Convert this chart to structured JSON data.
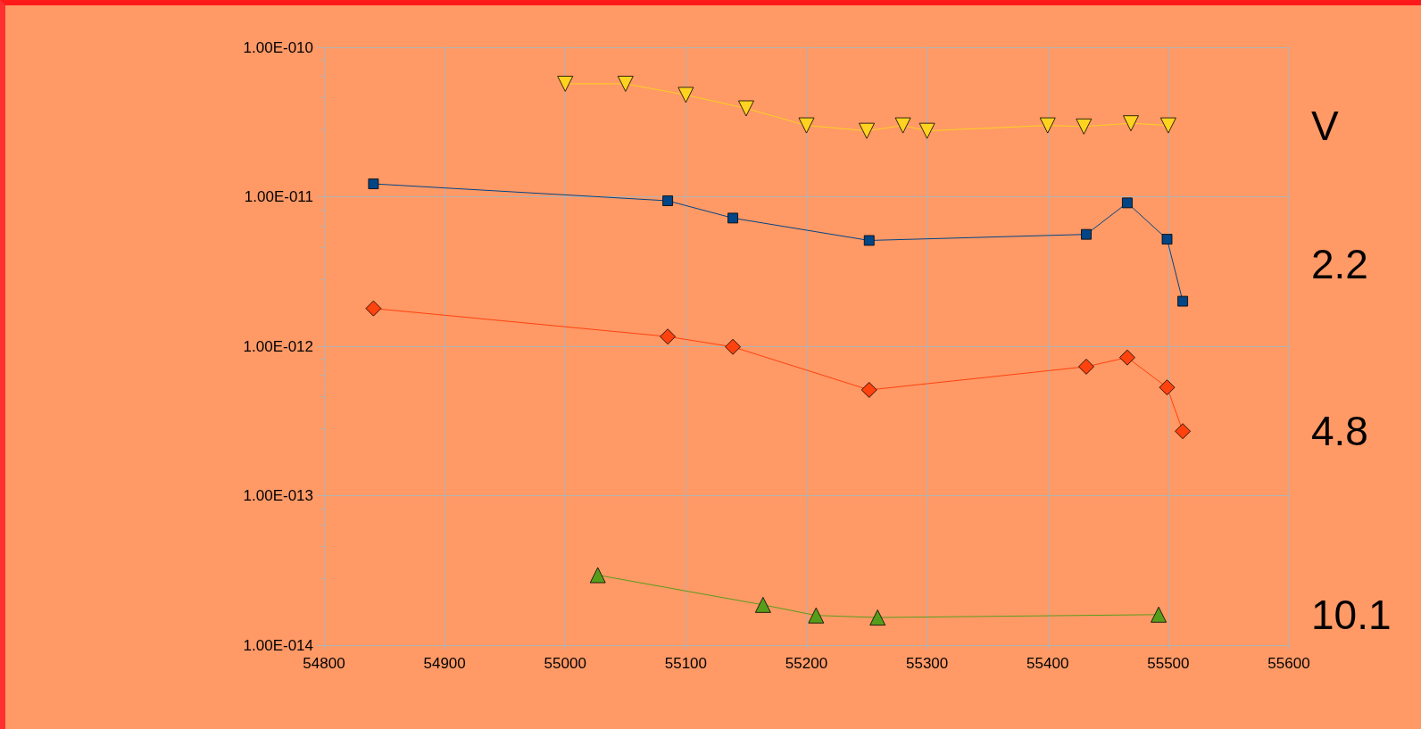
{
  "chart_data": {
    "type": "line",
    "log": "y",
    "grid": true,
    "legend": false,
    "xlim": [
      54800,
      55600
    ],
    "xticks": [
      54800,
      54900,
      55000,
      55100,
      55200,
      55300,
      55400,
      55500,
      55600
    ],
    "ylim": [
      1e-14,
      1e-10
    ],
    "yticks": [
      {
        "value": 1e-14,
        "label": "1.00E-014"
      },
      {
        "value": 1e-13,
        "label": "1.00E-013"
      },
      {
        "value": 1e-12,
        "label": "1.00E-012"
      },
      {
        "value": 1e-11,
        "label": "1.00E-011"
      },
      {
        "value": 1e-10,
        "label": "1.00E-010"
      }
    ],
    "series": [
      {
        "name": "V",
        "color": "#ffd320",
        "marker": "triangle_down",
        "x": [
          55000,
          55050,
          55100,
          55150,
          55200,
          55250,
          55280,
          55300,
          55400,
          55430,
          55469,
          55500
        ],
        "values": [
          5.7e-11,
          5.7e-11,
          4.8e-11,
          3.9e-11,
          3e-11,
          2.76e-11,
          3e-11,
          2.76e-11,
          3e-11,
          2.95e-11,
          3.1e-11,
          3e-11
        ]
      },
      {
        "name": "2.2",
        "color": "#004586",
        "marker": "square",
        "x": [
          54841,
          55085,
          55139,
          55252,
          55432,
          55466,
          55499,
          55512
        ],
        "values": [
          1.22e-11,
          9.4e-12,
          7.2e-12,
          5.1e-12,
          5.6e-12,
          9.1e-12,
          5.2e-12,
          2e-12
        ]
      },
      {
        "name": "4.8",
        "color": "#ff420e",
        "marker": "diamond",
        "x": [
          54841,
          55085,
          55139,
          55252,
          55432,
          55466,
          55499,
          55512
        ],
        "values": [
          1.79e-12,
          1.16e-12,
          9.9e-13,
          5.1e-13,
          7.3e-13,
          8.4e-13,
          5.3e-13,
          2.7e-13
        ]
      },
      {
        "name": "10.1",
        "color": "#579d1c",
        "marker": "triangle",
        "x": [
          55027,
          55164,
          55208,
          55259,
          55492
        ],
        "values": [
          2.94e-14,
          1.86e-14,
          1.58e-14,
          1.53e-14,
          1.6e-14
        ]
      }
    ]
  }
}
